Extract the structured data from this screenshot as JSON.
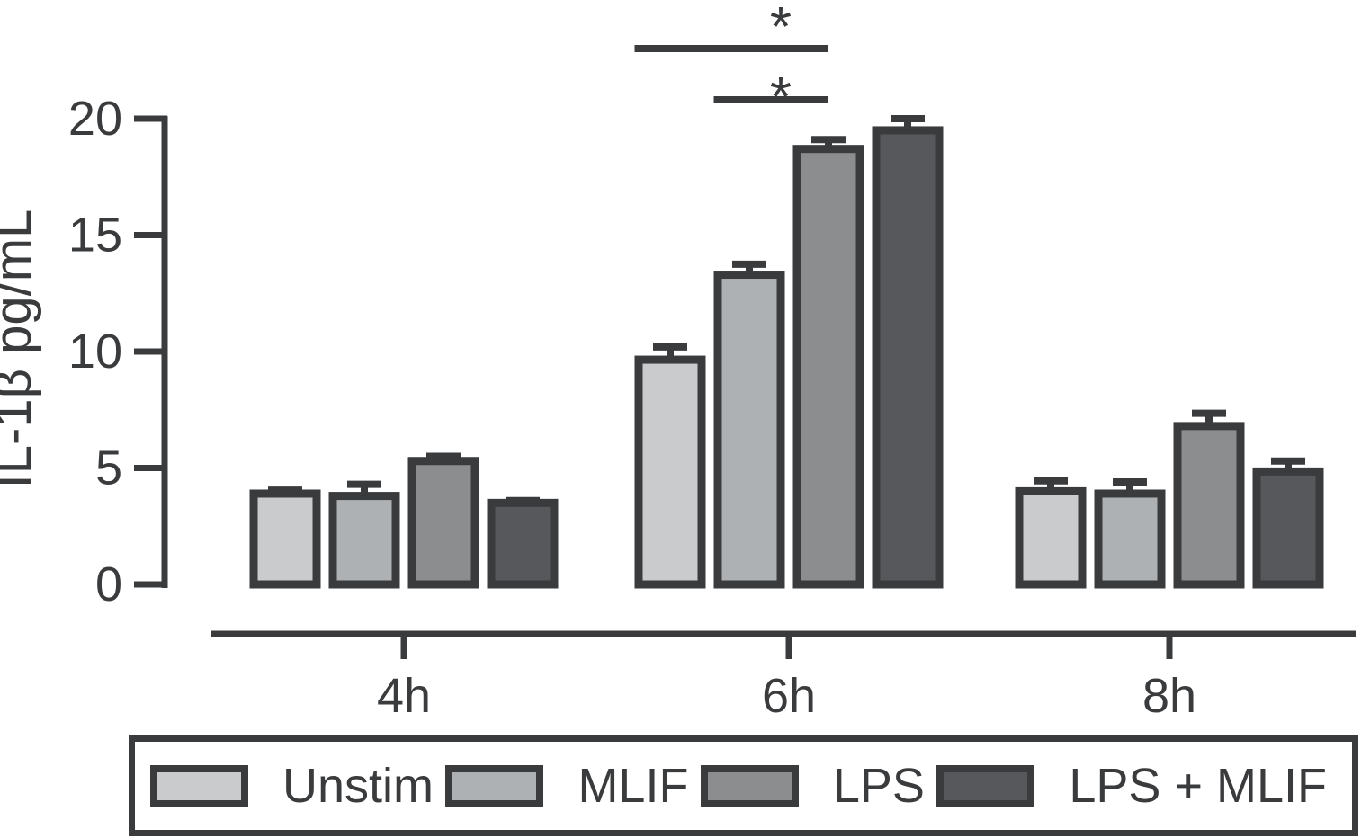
{
  "chart_data": {
    "type": "bar",
    "title": "",
    "ylabel": "IL-1β pg/mL",
    "xlabel": "",
    "ylim": [
      0,
      20
    ],
    "yticks": [
      0,
      5,
      10,
      15,
      20
    ],
    "categories": [
      "4h",
      "6h",
      "8h"
    ],
    "series": [
      {
        "name": "Unstim",
        "color": "#c9cbcc",
        "values": [
          3.9,
          9.65,
          4.0
        ],
        "errors": [
          0.15,
          0.55,
          0.45
        ]
      },
      {
        "name": "MLIF",
        "color": "#aeb1b3",
        "values": [
          3.8,
          13.3,
          3.9
        ],
        "errors": [
          0.5,
          0.45,
          0.5
        ]
      },
      {
        "name": "LPS",
        "color": "#8b8d8f",
        "values": [
          5.3,
          18.7,
          6.8
        ],
        "errors": [
          0.2,
          0.4,
          0.55
        ]
      },
      {
        "name": "LPS + MLIF",
        "color": "#57585b",
        "values": [
          3.5,
          19.5,
          4.85
        ],
        "errors": [
          0.1,
          0.5,
          0.45
        ]
      }
    ],
    "annotations": [
      {
        "label": "*",
        "category": "6h",
        "from_series": "Unstim",
        "to_series": "LPS"
      },
      {
        "label": "*",
        "category": "6h",
        "from_series": "MLIF",
        "to_series": "LPS"
      }
    ],
    "error_bars": "upper",
    "grid": false,
    "legend_position": "bottom"
  },
  "colors": {
    "outline": "#3a3b3d",
    "background": "#ffffff"
  }
}
